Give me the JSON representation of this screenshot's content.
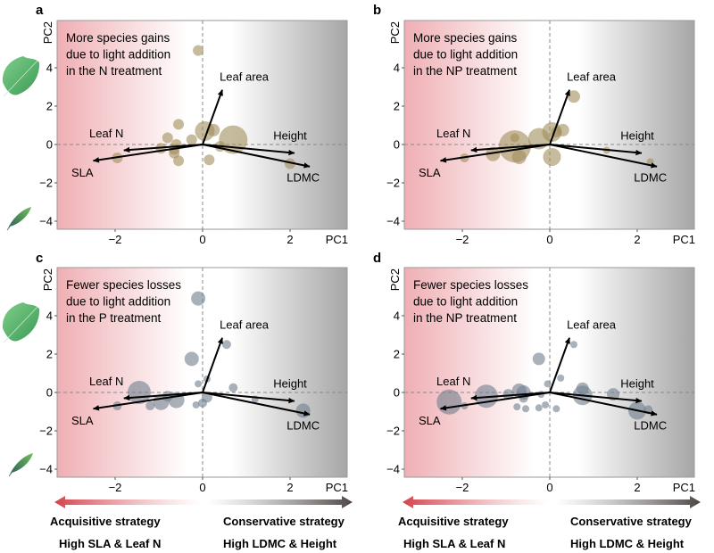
{
  "chart_data": {
    "type": "scatter",
    "subtype": "pca-biplot-bubble",
    "shared": {
      "xlabel": "PC1",
      "ylabel": "PC2",
      "xlim": [
        -3.33,
        3.31
      ],
      "ylim": [
        -4.42,
        6.47
      ],
      "xticks": [
        -2,
        0,
        2
      ],
      "yticks": [
        -4,
        -2,
        0,
        2,
        4
      ],
      "xtick_labels": [
        "−2",
        "0",
        "2"
      ],
      "ytick_labels": [
        "−4",
        "−2",
        "0",
        "2",
        "4"
      ],
      "background_gradient": {
        "left": "#f1b3b7",
        "middle": "#ffffff",
        "right": "#a9a9a9"
      },
      "reference_lines": "dashed lines at x=0 and y=0",
      "vectors": [
        {
          "name": "Leaf area",
          "x": 0.45,
          "y": 2.85
        },
        {
          "name": "Leaf N",
          "x": -1.8,
          "y": -0.3
        },
        {
          "name": "SLA",
          "x": -2.5,
          "y": -0.85
        },
        {
          "name": "Height",
          "x": 2.1,
          "y": -0.45
        },
        {
          "name": "LDMC",
          "x": 2.45,
          "y": -1.15
        }
      ],
      "vector_labels": [
        {
          "name": "Leaf area",
          "x": 0.95,
          "y": 3.55
        },
        {
          "name": "Leaf N",
          "x": -2.2,
          "y": 0.6
        },
        {
          "name": "SLA",
          "x": -2.75,
          "y": -1.45
        },
        {
          "name": "Height",
          "x": 2.0,
          "y": 0.5
        },
        {
          "name": "LDMC",
          "x": 2.3,
          "y": -1.7
        }
      ]
    },
    "panels": [
      {
        "id": "a",
        "annotation": [
          "More species gains",
          "due to light addition",
          "in the N treatment"
        ],
        "point_color": "#a08d5a",
        "points": [
          {
            "x": -0.1,
            "y": 4.9,
            "size": 6
          },
          {
            "x": 0.05,
            "y": 0.7,
            "size": 11
          },
          {
            "x": 0.25,
            "y": 0.75,
            "size": 7
          },
          {
            "x": 0.7,
            "y": 0.25,
            "size": 16
          },
          {
            "x": 0.4,
            "y": -0.1,
            "size": 6
          },
          {
            "x": -0.55,
            "y": 1.05,
            "size": 6
          },
          {
            "x": -0.8,
            "y": 0.35,
            "size": 6
          },
          {
            "x": -0.25,
            "y": 0.25,
            "size": 6
          },
          {
            "x": -0.6,
            "y": 0.0,
            "size": 6
          },
          {
            "x": -0.95,
            "y": -0.2,
            "size": 6
          },
          {
            "x": -0.65,
            "y": -0.25,
            "size": 6
          },
          {
            "x": -0.65,
            "y": -0.45,
            "size": 6
          },
          {
            "x": -0.55,
            "y": -0.85,
            "size": 6
          },
          {
            "x": 0.15,
            "y": -0.8,
            "size": 6
          },
          {
            "x": -1.95,
            "y": -0.7,
            "size": 6
          },
          {
            "x": 2.0,
            "y": -1.0,
            "size": 6
          }
        ]
      },
      {
        "id": "b",
        "annotation": [
          "More species gains",
          "due to light addition",
          "in the NP treatment"
        ],
        "point_color": "#a08d5a",
        "points": [
          {
            "x": 0.55,
            "y": 2.5,
            "size": 7
          },
          {
            "x": 0.05,
            "y": 0.65,
            "size": 11
          },
          {
            "x": 0.3,
            "y": 0.75,
            "size": 7
          },
          {
            "x": 0.15,
            "y": 0.65,
            "size": 6
          },
          {
            "x": -0.25,
            "y": 0.3,
            "size": 12
          },
          {
            "x": -0.8,
            "y": -0.1,
            "size": 18
          },
          {
            "x": -0.8,
            "y": 0.35,
            "size": 5
          },
          {
            "x": -0.7,
            "y": -0.65,
            "size": 8
          },
          {
            "x": -1.3,
            "y": -0.5,
            "size": 8
          },
          {
            "x": 0.05,
            "y": -0.65,
            "size": 10
          },
          {
            "x": -1.95,
            "y": -0.7,
            "size": 5
          },
          {
            "x": 1.3,
            "y": -0.3,
            "size": 4
          },
          {
            "x": 2.3,
            "y": -0.9,
            "size": 4
          }
        ]
      },
      {
        "id": "c",
        "annotation": [
          "Fewer species losses",
          "due to light addition",
          "in the P treatment"
        ],
        "point_color": "#6f7f8e",
        "points": [
          {
            "x": -0.1,
            "y": 4.9,
            "size": 8
          },
          {
            "x": -0.25,
            "y": 1.75,
            "size": 8
          },
          {
            "x": 0.55,
            "y": 2.5,
            "size": 5
          },
          {
            "x": -1.45,
            "y": 0.0,
            "size": 13
          },
          {
            "x": -0.95,
            "y": -0.5,
            "size": 9
          },
          {
            "x": -0.6,
            "y": -0.4,
            "size": 9
          },
          {
            "x": -0.8,
            "y": -0.2,
            "size": 6
          },
          {
            "x": -1.2,
            "y": -0.7,
            "size": 5
          },
          {
            "x": -1.95,
            "y": -0.7,
            "size": 5
          },
          {
            "x": 0.1,
            "y": 0.7,
            "size": 4
          },
          {
            "x": -0.1,
            "y": 0.45,
            "size": 4
          },
          {
            "x": 0.1,
            "y": -0.25,
            "size": 6
          },
          {
            "x": 0.0,
            "y": -0.55,
            "size": 5
          },
          {
            "x": -0.15,
            "y": -0.65,
            "size": 4
          },
          {
            "x": 0.7,
            "y": 0.25,
            "size": 5
          },
          {
            "x": 1.2,
            "y": -0.35,
            "size": 4
          },
          {
            "x": 2.3,
            "y": -0.95,
            "size": 8
          }
        ]
      },
      {
        "id": "d",
        "annotation": [
          "Fewer species losses",
          "due to light addition",
          "in the NP treatment"
        ],
        "point_color": "#6f7f8e",
        "points": [
          {
            "x": -0.25,
            "y": 1.75,
            "size": 7
          },
          {
            "x": 0.55,
            "y": 2.5,
            "size": 4
          },
          {
            "x": -2.3,
            "y": -0.5,
            "size": 14
          },
          {
            "x": -1.45,
            "y": -0.2,
            "size": 13
          },
          {
            "x": -0.7,
            "y": 0.1,
            "size": 8
          },
          {
            "x": -0.6,
            "y": 0.0,
            "size": 8
          },
          {
            "x": -0.95,
            "y": -0.1,
            "size": 6
          },
          {
            "x": -0.6,
            "y": -0.3,
            "size": 5
          },
          {
            "x": -0.75,
            "y": -0.75,
            "size": 4
          },
          {
            "x": -0.55,
            "y": -0.85,
            "size": 4
          },
          {
            "x": -0.25,
            "y": -0.8,
            "size": 4
          },
          {
            "x": -0.1,
            "y": -0.65,
            "size": 4
          },
          {
            "x": 0.15,
            "y": -0.85,
            "size": 4
          },
          {
            "x": -0.05,
            "y": 0.45,
            "size": 4
          },
          {
            "x": -0.2,
            "y": -0.1,
            "size": 4
          },
          {
            "x": 0.25,
            "y": 0.75,
            "size": 4
          },
          {
            "x": 0.75,
            "y": 0.2,
            "size": 7
          },
          {
            "x": 0.75,
            "y": -0.15,
            "size": 11
          },
          {
            "x": 1.45,
            "y": -0.1,
            "size": 7
          },
          {
            "x": 2.0,
            "y": -0.95,
            "size": 10
          },
          {
            "x": 2.25,
            "y": -0.9,
            "size": 5
          },
          {
            "x": -1.95,
            "y": -0.7,
            "size": 4
          }
        ]
      }
    ]
  },
  "legend": {
    "left_strategy": {
      "title": "Acquisitive strategy",
      "subtitle": "High SLA & Leaf N",
      "arrow_color": "#d2434b"
    },
    "right_strategy": {
      "title": "Conservative strategy",
      "subtitle": "High LDMC & Height",
      "arrow_color": "#55504e"
    }
  },
  "leaf_icons": [
    {
      "name": "broad-leaf-icon",
      "meaning": "large leaf area"
    },
    {
      "name": "narrow-leaf-icon",
      "meaning": "small leaf area"
    }
  ]
}
